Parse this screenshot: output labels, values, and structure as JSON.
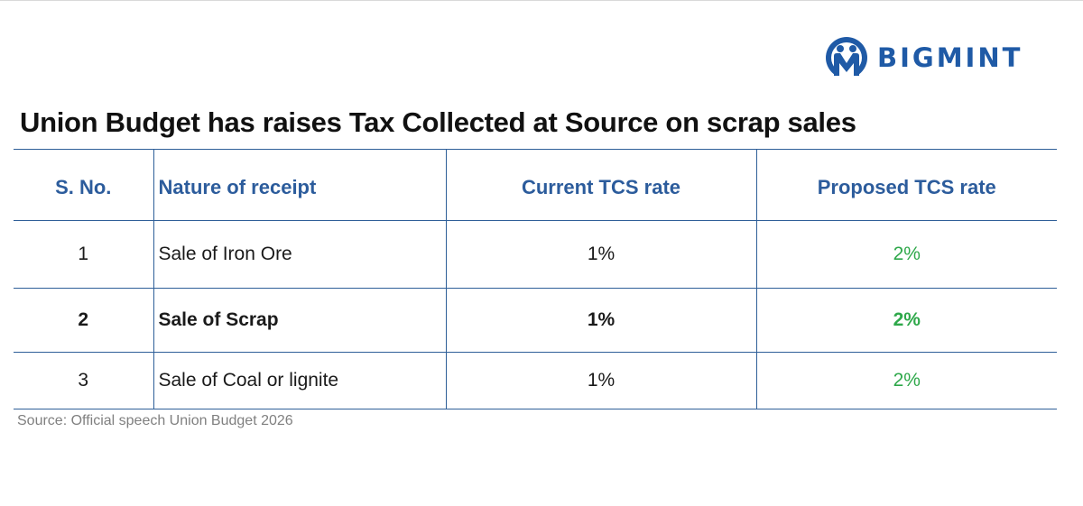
{
  "brand": {
    "name": "BIGMINT",
    "color": "#1f5aa6"
  },
  "title": "Union Budget has raises Tax Collected at Source on scrap sales",
  "table": {
    "headers": {
      "sno": "S. No.",
      "nature": "Nature of receipt",
      "current": "Current TCS rate",
      "proposed": "Proposed TCS rate"
    },
    "rows": [
      {
        "sno": "1",
        "nature": "Sale of Iron Ore",
        "current": "1%",
        "proposed": "2%"
      },
      {
        "sno": "2",
        "nature": "Sale of Scrap",
        "current": "1%",
        "proposed": "2%"
      },
      {
        "sno": "3",
        "nature": "Sale of Coal or lignite",
        "current": "1%",
        "proposed": "2%"
      }
    ],
    "colors": {
      "header_text": "#2c5c9c",
      "border": "#2e5f98",
      "proposed_text": "#2ea84a"
    }
  },
  "source": "Source: Official speech Union Budget 2026"
}
